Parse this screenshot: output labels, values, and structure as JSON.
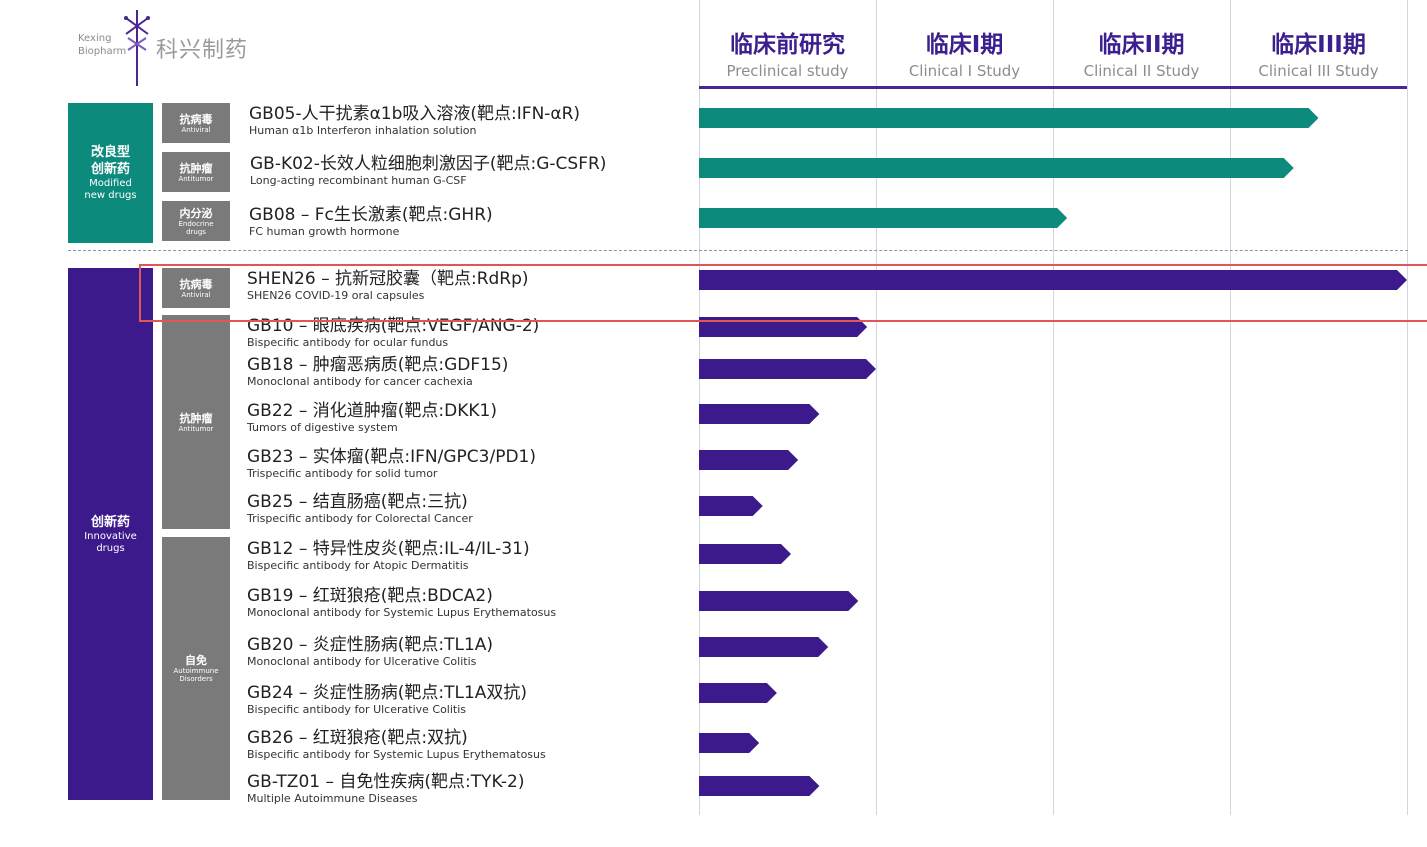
{
  "logo": {
    "en_line1": "Kexing",
    "en_line2": "Biopharm",
    "cn": "科兴制药"
  },
  "colors": {
    "teal": "#0c8a7c",
    "purple": "#3d1a8c",
    "category_gray": "#7a7a7a",
    "phase_title": "#3c1f8f",
    "highlight": "#e05555"
  },
  "phases": [
    {
      "cn": "临床前研究",
      "en": "Preclinical study"
    },
    {
      "cn": "临床I期",
      "en": "Clinical I Study"
    },
    {
      "cn": "临床II期",
      "en": "Clinical II Study"
    },
    {
      "cn": "临床III期",
      "en": "Clinical III Study"
    }
  ],
  "groups": [
    {
      "cn": "改良型\n创新药",
      "en": "Modified\nnew drugs",
      "color": "teal"
    },
    {
      "cn": "创新药",
      "en": "Innovative\ndrugs",
      "color": "purple"
    }
  ],
  "categories": [
    {
      "cn": "抗病毒",
      "en": "Antiviral"
    },
    {
      "cn": "抗肿瘤",
      "en": "Antitumor"
    },
    {
      "cn": "内分泌",
      "en": "Endocrine\ndrugs"
    },
    {
      "cn": "抗病毒",
      "en": "Antiviral"
    },
    {
      "cn": "抗肿瘤",
      "en": "Antitumor"
    },
    {
      "cn": "自免",
      "en": "Autoimmune\nDisorders"
    }
  ],
  "drugs": [
    {
      "cn": "GB05-人干扰素α1b吸入溶液(靶点:IFN-αR)",
      "en": "Human α1b Interferon inhalation solution"
    },
    {
      "cn": "GB-K02-长效人粒细胞刺激因子(靶点:G-CSFR)",
      "en": "Long-acting  recombinant human G-CSF"
    },
    {
      "cn": "GB08 – Fc生长激素(靶点:GHR)",
      "en": "FC human growth hormone"
    },
    {
      "cn": "SHEN26 – 抗新冠胶囊（靶点:RdRp)",
      "en": "SHEN26 COVID-19 oral capsules"
    },
    {
      "cn": "GB10 – 眼底疾病(靶点:VEGF/ANG-2)",
      "en": "Bispecific antibody for ocular fundus"
    },
    {
      "cn": "GB18 – 肿瘤恶病质(靶点:GDF15)",
      "en": "Monoclonal antibody for cancer cachexia"
    },
    {
      "cn": "GB22 – 消化道肿瘤(靶点:DKK1)",
      "en": "Tumors of digestive system"
    },
    {
      "cn": "GB23 – 实体瘤(靶点:IFN/GPC3/PD1)",
      "en": "Trispecific antibody for solid tumor"
    },
    {
      "cn": "GB25 – 结直肠癌(靶点:三抗)",
      "en": "Trispecific antibody for Colorectal Cancer"
    },
    {
      "cn": "GB12 – 特异性皮炎(靶点:IL-4/IL-31)",
      "en": "Bispecific antibody for Atopic Dermatitis"
    },
    {
      "cn": "GB19 – 红斑狼疮(靶点:BDCA2)",
      "en": "Monoclonal antibody for Systemic Lupus Erythematosus"
    },
    {
      "cn": "GB20 – 炎症性肠病(靶点:TL1A)",
      "en": "Monoclonal antibody for Ulcerative Colitis"
    },
    {
      "cn": "GB24 – 炎症性肠病(靶点:TL1A双抗)",
      "en": "Bispecific antibody for Ulcerative Colitis"
    },
    {
      "cn": "GB26 – 红斑狼疮(靶点:双抗)",
      "en": "Bispecific antibody for Systemic Lupus Erythematosus"
    },
    {
      "cn": "GB-TZ01 – 自免性疾病(靶点:TYK-2)",
      "en": "Multiple Autoimmune Diseases"
    }
  ],
  "chart_data": {
    "type": "bar",
    "orientation": "horizontal",
    "x_axis": "phases",
    "xlim": [
      0,
      4
    ],
    "categories": [
      "GB05",
      "GB-K02",
      "GB08",
      "SHEN26",
      "GB10",
      "GB18",
      "GB22",
      "GB23",
      "GB25",
      "GB12",
      "GB19",
      "GB20",
      "GB24",
      "GB26",
      "GB-TZ01"
    ],
    "values": [
      3.5,
      3.36,
      2.08,
      4.0,
      0.95,
      1.0,
      0.68,
      0.56,
      0.36,
      0.52,
      0.9,
      0.73,
      0.44,
      0.34,
      0.68
    ],
    "colors": [
      "teal",
      "teal",
      "teal",
      "purple",
      "purple",
      "purple",
      "purple",
      "purple",
      "purple",
      "purple",
      "purple",
      "purple",
      "purple",
      "purple",
      "purple"
    ],
    "highlighted": "SHEN26"
  }
}
